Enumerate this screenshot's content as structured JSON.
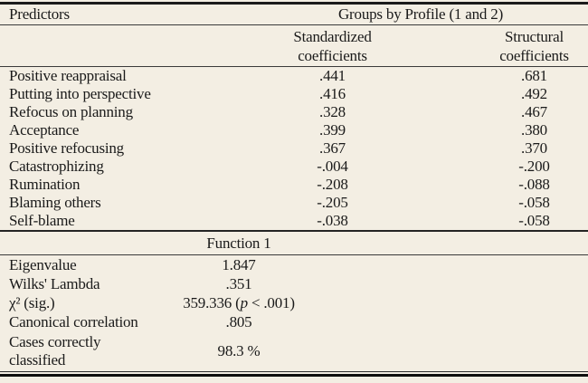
{
  "colors": {
    "background": "#f3eee3",
    "text": "#1a1a1a",
    "rule": "#2e2e2e"
  },
  "table": {
    "headers": {
      "predictors": "Predictors",
      "group_span": "Groups by Profile (1 and 2)",
      "standardized": "Standardized coefficients",
      "structural": "Structural coefficients"
    },
    "rows": [
      {
        "label": "Positive reappraisal",
        "std": ".441",
        "struct": ".681"
      },
      {
        "label": "Putting into perspective",
        "std": ".416",
        "struct": ".492"
      },
      {
        "label": "Refocus on planning",
        "std": ".328",
        "struct": ".467"
      },
      {
        "label": "Acceptance",
        "std": ".399",
        "struct": ".380"
      },
      {
        "label": "Positive refocusing",
        "std": ".367",
        "struct": ".370"
      },
      {
        "label": "Catastrophizing",
        "std": "-.004",
        "struct": "-.200"
      },
      {
        "label": "Rumination",
        "std": "-.208",
        "struct": "-.088"
      },
      {
        "label": "Blaming others",
        "std": "-.205",
        "struct": "-.058"
      },
      {
        "label": "Self-blame",
        "std": "-.038",
        "struct": "-.058"
      }
    ],
    "function_block": {
      "header": "Function 1",
      "rows": [
        {
          "label": "Eigenvalue",
          "value": "1.847"
        },
        {
          "label": "Wilks' Lambda",
          "value": ".351"
        },
        {
          "label": "χ² (sig.)",
          "value_pre": "359.336 (",
          "p": "p",
          "value_post": " < .001)"
        },
        {
          "label": "Canonical correlation",
          "value": ".805"
        },
        {
          "label": "Cases correctly classified",
          "value": "98.3 %"
        }
      ]
    }
  }
}
